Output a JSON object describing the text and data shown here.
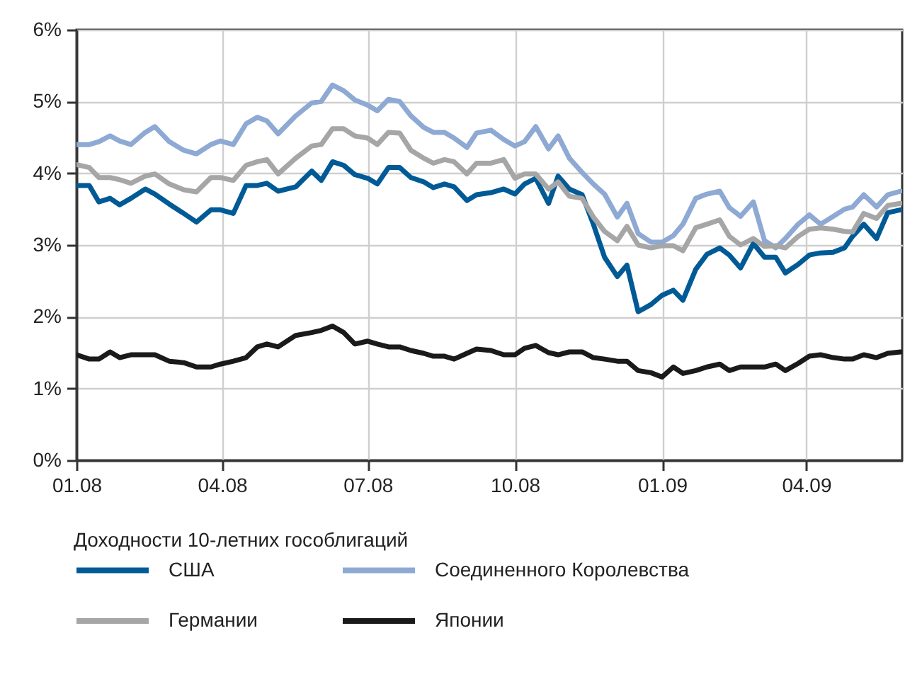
{
  "chart_data": {
    "type": "line",
    "legend_title": "Доходности 10-летних гособлигаций",
    "x": [
      "2008-01-01",
      "2008-01-09",
      "2008-01-15",
      "2008-01-22",
      "2008-01-28",
      "2008-02-04",
      "2008-02-13",
      "2008-02-19",
      "2008-02-28",
      "2008-03-08",
      "2008-03-16",
      "2008-03-25",
      "2008-03-31",
      "2008-04-08",
      "2008-04-16",
      "2008-04-23",
      "2008-04-29",
      "2008-05-06",
      "2008-05-17",
      "2008-05-27",
      "2008-06-02",
      "2008-06-09",
      "2008-06-16",
      "2008-06-23",
      "2008-07-01",
      "2008-07-07",
      "2008-07-14",
      "2008-07-21",
      "2008-07-28",
      "2008-08-05",
      "2008-08-11",
      "2008-08-18",
      "2008-08-24",
      "2008-09-01",
      "2008-09-07",
      "2008-09-16",
      "2008-09-24",
      "2008-10-01",
      "2008-10-07",
      "2008-10-14",
      "2008-10-22",
      "2008-10-28",
      "2008-11-04",
      "2008-11-12",
      "2008-11-19",
      "2008-11-26",
      "2008-12-04",
      "2008-12-10",
      "2008-12-17",
      "2008-12-25",
      "2009-01-01",
      "2009-01-08",
      "2009-01-14",
      "2009-01-22",
      "2009-01-29",
      "2009-02-06",
      "2009-02-12",
      "2009-02-19",
      "2009-02-27",
      "2009-03-06",
      "2009-03-13",
      "2009-03-19",
      "2009-03-27",
      "2009-04-03",
      "2009-04-10",
      "2009-04-18",
      "2009-04-25",
      "2009-04-30",
      "2009-05-07",
      "2009-05-15",
      "2009-05-22",
      "2009-05-30"
    ],
    "series": [
      {
        "name": "США",
        "color": "#005a96",
        "values": [
          3.83,
          3.83,
          3.6,
          3.65,
          3.56,
          3.65,
          3.78,
          3.71,
          3.57,
          3.44,
          3.32,
          3.49,
          3.49,
          3.44,
          3.83,
          3.83,
          3.86,
          3.75,
          3.81,
          4.03,
          3.9,
          4.16,
          4.11,
          3.98,
          3.93,
          3.85,
          4.08,
          4.08,
          3.94,
          3.88,
          3.8,
          3.85,
          3.81,
          3.62,
          3.7,
          3.73,
          3.78,
          3.71,
          3.85,
          3.93,
          3.58,
          3.96,
          3.78,
          3.7,
          3.29,
          2.83,
          2.56,
          2.72,
          2.07,
          2.17,
          2.3,
          2.37,
          2.23,
          2.66,
          2.87,
          2.96,
          2.86,
          2.68,
          3.02,
          2.83,
          2.83,
          2.61,
          2.73,
          2.86,
          2.89,
          2.9,
          2.96,
          3.12,
          3.29,
          3.09,
          3.45,
          3.49
        ]
      },
      {
        "name": "Соединенного Королевства",
        "color": "#8ea9d3",
        "values": [
          4.4,
          4.4,
          4.44,
          4.52,
          4.45,
          4.4,
          4.57,
          4.65,
          4.44,
          4.32,
          4.27,
          4.4,
          4.45,
          4.4,
          4.69,
          4.78,
          4.73,
          4.55,
          4.8,
          4.98,
          5.0,
          5.23,
          5.15,
          5.02,
          4.95,
          4.87,
          5.03,
          5.0,
          4.8,
          4.64,
          4.57,
          4.57,
          4.49,
          4.36,
          4.56,
          4.6,
          4.47,
          4.38,
          4.44,
          4.65,
          4.34,
          4.52,
          4.21,
          4.01,
          3.85,
          3.71,
          3.39,
          3.58,
          3.16,
          3.04,
          3.04,
          3.13,
          3.29,
          3.65,
          3.71,
          3.75,
          3.52,
          3.4,
          3.6,
          3.06,
          2.96,
          3.09,
          3.29,
          3.42,
          3.29,
          3.4,
          3.5,
          3.53,
          3.7,
          3.53,
          3.7,
          3.75
        ]
      },
      {
        "name": "Германии",
        "color": "#a6a6a6",
        "values": [
          4.12,
          4.08,
          3.94,
          3.94,
          3.91,
          3.86,
          3.96,
          3.99,
          3.85,
          3.77,
          3.74,
          3.94,
          3.94,
          3.9,
          4.11,
          4.16,
          4.19,
          3.99,
          4.21,
          4.38,
          4.4,
          4.62,
          4.62,
          4.52,
          4.49,
          4.4,
          4.57,
          4.56,
          4.32,
          4.21,
          4.14,
          4.19,
          4.16,
          3.99,
          4.14,
          4.14,
          4.19,
          3.93,
          3.99,
          3.99,
          3.78,
          3.88,
          3.68,
          3.65,
          3.39,
          3.19,
          3.06,
          3.26,
          3.0,
          2.96,
          2.99,
          2.99,
          2.92,
          3.24,
          3.29,
          3.35,
          3.12,
          3.0,
          3.09,
          2.98,
          2.99,
          2.96,
          3.12,
          3.22,
          3.24,
          3.22,
          3.19,
          3.18,
          3.44,
          3.37,
          3.55,
          3.58
        ]
      },
      {
        "name": "Японии",
        "color": "#1a1a1a",
        "values": [
          1.47,
          1.41,
          1.41,
          1.51,
          1.43,
          1.47,
          1.47,
          1.47,
          1.38,
          1.36,
          1.3,
          1.3,
          1.34,
          1.38,
          1.43,
          1.58,
          1.62,
          1.58,
          1.74,
          1.78,
          1.81,
          1.87,
          1.78,
          1.62,
          1.66,
          1.62,
          1.58,
          1.58,
          1.53,
          1.49,
          1.45,
          1.45,
          1.41,
          1.49,
          1.55,
          1.53,
          1.47,
          1.47,
          1.56,
          1.6,
          1.5,
          1.47,
          1.51,
          1.51,
          1.43,
          1.41,
          1.38,
          1.38,
          1.25,
          1.22,
          1.16,
          1.3,
          1.21,
          1.25,
          1.3,
          1.34,
          1.25,
          1.3,
          1.3,
          1.3,
          1.34,
          1.25,
          1.35,
          1.45,
          1.47,
          1.43,
          1.41,
          1.41,
          1.47,
          1.43,
          1.49,
          1.51
        ]
      }
    ],
    "xlim": [
      "2008-01-01",
      "2009-05-31"
    ],
    "xticks": [
      {
        "value": "2008-01-01",
        "label": "01.08"
      },
      {
        "value": "2008-04-01",
        "label": "04.08"
      },
      {
        "value": "2008-07-01",
        "label": "07.08"
      },
      {
        "value": "2008-10-01",
        "label": "10.08"
      },
      {
        "value": "2009-01-01",
        "label": "01.09"
      },
      {
        "value": "2009-04-01",
        "label": "04.09"
      }
    ],
    "ylim": [
      0,
      6
    ],
    "yticks": [
      {
        "value": 0,
        "label": "0%"
      },
      {
        "value": 1,
        "label": "1%"
      },
      {
        "value": 2,
        "label": "2%"
      },
      {
        "value": 3,
        "label": "3%"
      },
      {
        "value": 4,
        "label": "4%"
      },
      {
        "value": 5,
        "label": "5%"
      },
      {
        "value": 6,
        "label": "6%"
      }
    ],
    "grid": true,
    "legend": "bottom",
    "line_style": "solid"
  }
}
